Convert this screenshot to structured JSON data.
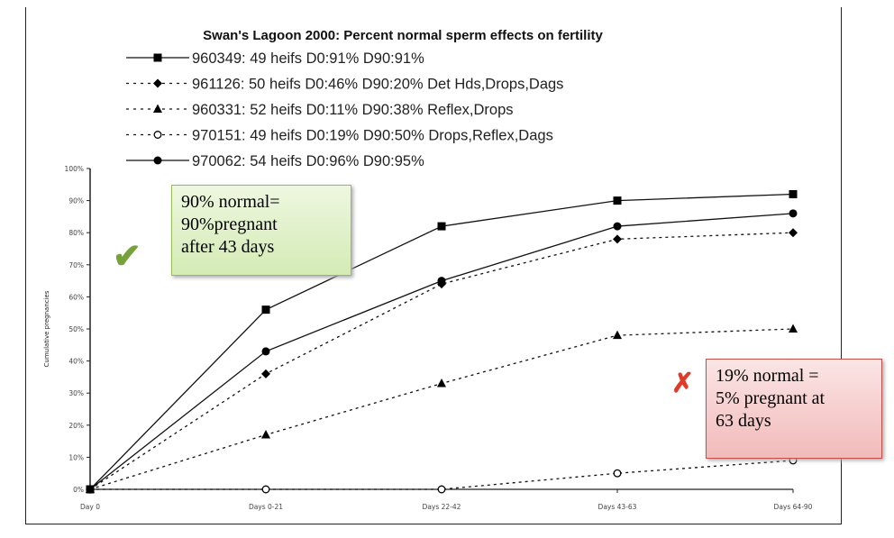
{
  "chart_data": {
    "type": "line",
    "title": "Swan's Lagoon 2000: Percent normal sperm effects on fertility",
    "xlabel": "",
    "ylabel": "Cumulative pregnancies",
    "categories": [
      "Day 0",
      "Days 0-21",
      "Days 22-42",
      "Days 43-63",
      "Days 64-90"
    ],
    "yticks": [
      "0%",
      "10%",
      "20%",
      "30%",
      "40%",
      "50%",
      "60%",
      "70%",
      "80%",
      "90%",
      "100%"
    ],
    "ylim": [
      0,
      100
    ],
    "grid": false,
    "legend": "top",
    "series": [
      {
        "name": "960349: 49 heifs D0:91% D90:91%",
        "marker": "square",
        "line": "solid",
        "values": [
          0,
          56,
          82,
          90,
          92
        ]
      },
      {
        "name": "961126: 50 heifs D0:46% D90:20% Det Hds,Drops,Dags",
        "marker": "diamond",
        "line": "dotted",
        "values": [
          0,
          36,
          64,
          78,
          80
        ]
      },
      {
        "name": "960331: 52 heifs D0:11% D90:38% Reflex,Drops",
        "marker": "triangle",
        "line": "dotted",
        "values": [
          0,
          17,
          33,
          48,
          50
        ]
      },
      {
        "name": "970151: 49 heifs D0:19% D90:50% Drops,Reflex,Dags",
        "marker": "open-circle",
        "line": "dotted",
        "values": [
          0,
          0,
          0,
          5,
          9
        ]
      },
      {
        "name": "970062: 54 heifs D0:96% D90:95%",
        "marker": "circle",
        "line": "solid",
        "values": [
          0,
          43,
          65,
          82,
          86
        ]
      }
    ]
  },
  "annotations": {
    "green_note": [
      "90% normal=",
      "90%pregnant",
      "after 43 days"
    ],
    "red_note": [
      "19% normal =",
      "5% pregnant at",
      "63 days"
    ],
    "check_icon": "check-mark-icon",
    "cross_icon": "cross-mark-icon",
    "green_color": "#77a13a",
    "red_color": "#e03a2a"
  }
}
